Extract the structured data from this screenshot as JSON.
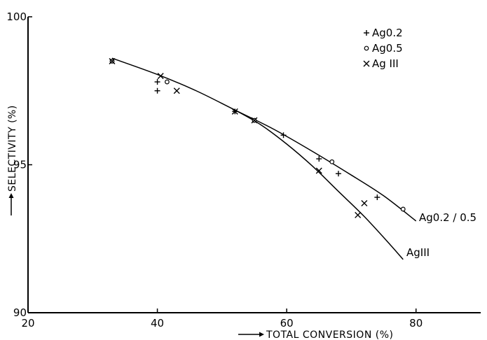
{
  "chart_data": {
    "type": "scatter",
    "xlabel": "TOTAL CONVERSION (%)",
    "ylabel": "SELECTIVITY (%)",
    "xlim": [
      20,
      90
    ],
    "ylim": [
      90,
      100
    ],
    "x_ticks": [
      20,
      40,
      60,
      80
    ],
    "y_ticks": [
      90,
      95,
      100
    ],
    "x_tick_labels": [
      "20",
      "40",
      "60",
      "80"
    ],
    "y_tick_labels": [
      "90",
      "95",
      "100"
    ],
    "grid": false,
    "legend_position": "top-right",
    "series": [
      {
        "name": "Ag0.2",
        "marker": "+",
        "points": [
          {
            "x": 40,
            "y": 97.8
          },
          {
            "x": 40,
            "y": 97.5
          },
          {
            "x": 52,
            "y": 96.8
          },
          {
            "x": 59.5,
            "y": 96.0
          },
          {
            "x": 65,
            "y": 95.2
          },
          {
            "x": 68,
            "y": 94.7
          },
          {
            "x": 74,
            "y": 93.9
          }
        ]
      },
      {
        "name": "Ag0.5",
        "marker": "o",
        "points": [
          {
            "x": 33,
            "y": 98.5
          },
          {
            "x": 41.5,
            "y": 97.8
          },
          {
            "x": 55,
            "y": 96.5
          },
          {
            "x": 67,
            "y": 95.1
          },
          {
            "x": 78,
            "y": 93.5
          }
        ]
      },
      {
        "name": "Ag III",
        "marker": "x",
        "points": [
          {
            "x": 33,
            "y": 98.5
          },
          {
            "x": 40.5,
            "y": 98.0
          },
          {
            "x": 43,
            "y": 97.5
          },
          {
            "x": 52,
            "y": 96.8
          },
          {
            "x": 55,
            "y": 96.5
          },
          {
            "x": 65,
            "y": 94.8
          },
          {
            "x": 71,
            "y": 93.3
          },
          {
            "x": 72,
            "y": 93.7
          }
        ]
      }
    ],
    "fit_curves": [
      {
        "label": "Ag0.2 / 0.5",
        "points": [
          {
            "x": 33,
            "y": 98.6
          },
          {
            "x": 40,
            "y": 98.05
          },
          {
            "x": 46,
            "y": 97.5
          },
          {
            "x": 52,
            "y": 96.85
          },
          {
            "x": 58,
            "y": 96.2
          },
          {
            "x": 64,
            "y": 95.45
          },
          {
            "x": 70,
            "y": 94.65
          },
          {
            "x": 75,
            "y": 93.95
          },
          {
            "x": 80,
            "y": 93.1
          }
        ]
      },
      {
        "label": "AgIII",
        "points": [
          {
            "x": 52,
            "y": 96.85
          },
          {
            "x": 56,
            "y": 96.35
          },
          {
            "x": 60,
            "y": 95.7
          },
          {
            "x": 64,
            "y": 94.95
          },
          {
            "x": 68,
            "y": 94.1
          },
          {
            "x": 72,
            "y": 93.25
          },
          {
            "x": 76,
            "y": 92.3
          },
          {
            "x": 78,
            "y": 91.8
          }
        ]
      }
    ]
  }
}
